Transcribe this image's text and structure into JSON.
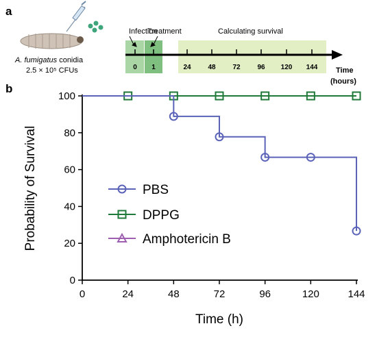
{
  "panel_a": {
    "label": "a",
    "conidia_species": "A. fumigatus",
    "conidia_word": " conidia",
    "dose": "2.5 × 10⁵ CFUs",
    "infection_label": "Infection",
    "treatment_label": "Treatment",
    "survival_label": "Calculating survival",
    "axis_label_1": "Time",
    "axis_label_2": "(hours)",
    "ticks": [
      "0",
      "1",
      "24",
      "48",
      "72",
      "96",
      "120",
      "144"
    ],
    "colors": {
      "infection_box": "#a9d6a4",
      "treatment_box": "#7fbf7f",
      "survival_box": "#e2efc4",
      "larva": "#cfc3b8",
      "spores": "#3fa57a"
    }
  },
  "panel_b": {
    "label": "b"
  },
  "chart_data": {
    "type": "line",
    "step": true,
    "xlabel": "Time (h)",
    "ylabel": "Probability of Survival",
    "xlim": [
      0,
      144
    ],
    "ylim": [
      0,
      100
    ],
    "xticks": [
      0,
      24,
      48,
      72,
      96,
      120,
      144
    ],
    "yticks": [
      0,
      20,
      40,
      60,
      80,
      100
    ],
    "legend_position": "center-left",
    "series": [
      {
        "name": "PBS",
        "color": "#5b63b8",
        "marker": "circle",
        "x": [
          0,
          48,
          72,
          96,
          120,
          144
        ],
        "y": [
          100,
          88.9,
          77.8,
          66.7,
          66.7,
          26.7
        ],
        "markers_x": [
          48,
          72,
          96,
          120,
          144
        ],
        "markers_y": [
          88.9,
          77.8,
          66.7,
          66.7,
          26.7
        ]
      },
      {
        "name": "DPPG",
        "color": "#1f7a3a",
        "marker": "square",
        "x": [
          0,
          24,
          48,
          72,
          96,
          120,
          144
        ],
        "y": [
          100,
          100,
          100,
          100,
          100,
          100,
          100
        ],
        "markers_x": [
          24,
          48,
          72,
          96,
          120,
          144
        ],
        "markers_y": [
          100,
          100,
          100,
          100,
          100,
          100
        ]
      },
      {
        "name": "Amphotericin B",
        "color": "#9e5fb1",
        "marker": "triangle",
        "x": [
          0,
          24,
          48,
          72,
          96,
          120,
          144
        ],
        "y": [
          100,
          100,
          100,
          100,
          100,
          100,
          100
        ],
        "markers_x": [],
        "markers_y": []
      }
    ]
  }
}
